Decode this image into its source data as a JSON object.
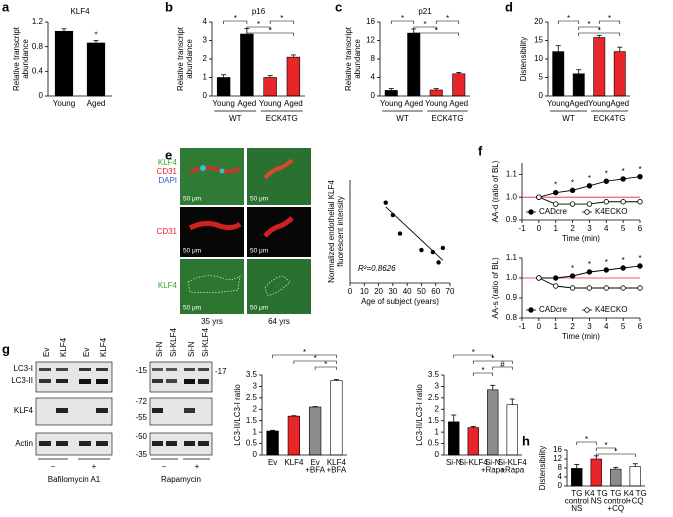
{
  "chart_data": [
    {
      "type": "bar",
      "label": "a",
      "title": "KLF4",
      "ylabel": [
        "Relative transcript",
        "abundance"
      ],
      "categories": [
        "Young",
        "Aged"
      ],
      "values": [
        1.05,
        0.86
      ],
      "errors": [
        0.04,
        0.04
      ],
      "colors": [
        "#000000",
        "#000000"
      ],
      "ylim": [
        0,
        1.2
      ],
      "yticks": [
        0,
        0.4,
        0.8,
        1.2
      ],
      "annotations": [
        "*"
      ]
    },
    {
      "type": "bar",
      "label": "b",
      "title": "p16",
      "ylabel": [
        "Relative transcript",
        "abundance"
      ],
      "categories": [
        "Young",
        "Aged",
        "Young",
        "Aged"
      ],
      "groups": [
        "WT",
        "ECK4TG"
      ],
      "values": [
        1.0,
        3.35,
        1.0,
        2.1
      ],
      "errors": [
        0.15,
        0.3,
        0.1,
        0.12
      ],
      "colors": [
        "#000000",
        "#000000",
        "#e8262a",
        "#e8262a"
      ],
      "ylim": [
        0,
        4
      ],
      "yticks": [
        0,
        1,
        2,
        3,
        4
      ],
      "annotations": [
        "*",
        "*",
        "*",
        "*"
      ]
    },
    {
      "type": "bar",
      "label": "c",
      "title": "p21",
      "ylabel": [
        "Relative transcript",
        "abundance"
      ],
      "categories": [
        "Young",
        "Aged",
        "Young",
        "Aged"
      ],
      "groups": [
        "WT",
        "ECK4TG"
      ],
      "values": [
        1.2,
        13.6,
        1.3,
        4.8
      ],
      "errors": [
        0.4,
        0.9,
        0.3,
        0.3
      ],
      "colors": [
        "#000000",
        "#000000",
        "#e8262a",
        "#e8262a"
      ],
      "ylim": [
        0,
        16
      ],
      "yticks": [
        0,
        4,
        8,
        12,
        16
      ],
      "annotations": [
        "*",
        "*",
        "*",
        "*"
      ]
    },
    {
      "type": "bar",
      "label": "d",
      "ylabel": "Distensibility",
      "categories": [
        "Young",
        "Aged",
        "Young",
        "Aged"
      ],
      "groups": [
        "WT",
        "ECK4TG"
      ],
      "values": [
        12,
        6,
        15.8,
        12
      ],
      "errors": [
        1.6,
        1.1,
        0.6,
        1.2
      ],
      "colors": [
        "#000000",
        "#000000",
        "#e8262a",
        "#e8262a"
      ],
      "ylim": [
        0,
        20
      ],
      "yticks": [
        0,
        5,
        10,
        15,
        20
      ],
      "annotations": [
        "*",
        "*",
        "*",
        "*"
      ]
    },
    {
      "type": "scatter",
      "xlabel": "Age of subject (years)",
      "ylabel": [
        "Normalized endothelial KLF4",
        "fluorescent intensity"
      ],
      "x": [
        25,
        30,
        35,
        50,
        58,
        62,
        65
      ],
      "y": [
        0.195,
        0.165,
        0.12,
        0.08,
        0.075,
        0.05,
        0.085
      ],
      "color": "#000000",
      "trend": {
        "x": [
          25,
          65
        ],
        "y": [
          0.185,
          0.055
        ]
      },
      "xlim": [
        0,
        70
      ],
      "xticks": [
        0,
        10,
        20,
        30,
        40,
        50,
        60,
        70
      ],
      "ylim": [
        0,
        0.25
      ],
      "annotations": [
        "R²=0.8626"
      ]
    },
    {
      "type": "line",
      "label": "f",
      "xlabel": "Time (min)",
      "ylabel": "AA-d (ratio of BL)",
      "x": [
        0,
        1,
        2,
        3,
        4,
        5,
        6
      ],
      "series": [
        {
          "name": "CADcre",
          "color": "#000000",
          "fill": "#000000",
          "values": [
            1.0,
            1.02,
            1.03,
            1.05,
            1.07,
            1.08,
            1.09
          ]
        },
        {
          "name": "K4ECKO",
          "color": "#000000",
          "fill": "#ffffff",
          "values": [
            1.0,
            0.97,
            0.97,
            0.97,
            0.98,
            0.98,
            0.98
          ]
        }
      ],
      "xlim": [
        -1,
        6
      ],
      "xticks": [
        -1,
        0,
        1,
        2,
        3,
        4,
        5,
        6
      ],
      "ylim": [
        0.9,
        1.15
      ],
      "yticks": [
        0.9,
        {
          "value": 1,
          "label": "1.0"
        },
        1.1
      ],
      "reference": 1,
      "reference_color": "#e8262a",
      "legend": "lower left",
      "annotations": [
        "*",
        "*",
        "*",
        "*",
        "*",
        "*"
      ]
    },
    {
      "type": "line",
      "xlabel": "Time (min)",
      "ylabel": "AA-s (ratio of BL)",
      "x": [
        0,
        1,
        2,
        3,
        4,
        5,
        6
      ],
      "series": [
        {
          "name": "CADcre",
          "color": "#000000",
          "fill": "#000000",
          "values": [
            1.0,
            1.0,
            1.01,
            1.03,
            1.04,
            1.05,
            1.06
          ]
        },
        {
          "name": "K4ECKO",
          "color": "#000000",
          "fill": "#ffffff",
          "values": [
            1.0,
            0.96,
            0.95,
            0.95,
            0.95,
            0.95,
            0.95
          ]
        }
      ],
      "xlim": [
        -1,
        6
      ],
      "xticks": [
        -1,
        0,
        1,
        2,
        3,
        4,
        5,
        6
      ],
      "ylim": [
        0.8,
        1.1
      ],
      "yticks": [
        0.8,
        0.9,
        {
          "value": 1,
          "label": "1.0"
        },
        1.1
      ],
      "reference": 1,
      "reference_color": "#e8262a",
      "legend": "lower left",
      "annotations": [
        "*",
        "*",
        "*",
        "*",
        "*"
      ]
    },
    {
      "type": "bar",
      "ylabel": "LC3-II/LC3-I ratio",
      "categories": [
        [
          "Ev"
        ],
        [
          "KLF4"
        ],
        [
          "Ev",
          "+BFA"
        ],
        [
          "KLF4",
          "+BFA"
        ]
      ],
      "values": [
        1.05,
        1.7,
        2.1,
        3.25
      ],
      "errors": [
        0.03,
        0.02,
        0.02,
        0.05
      ],
      "colors": [
        "#000000",
        "#e8262a",
        "#8c8c8c",
        "#ffffff"
      ],
      "ylim": [
        0,
        3.5
      ],
      "yticks": [
        0,
        0.5,
        1,
        1.5,
        2,
        2.5,
        3,
        3.5
      ],
      "annotations": [
        "*",
        "*",
        "*"
      ]
    },
    {
      "type": "bar",
      "ylabel": "LC3-II/LC3-I ratio",
      "categories": [
        [
          "Si-N"
        ],
        [
          "Si-KLF4"
        ],
        [
          "Si-N",
          "+Rapa"
        ],
        [
          "Si-KLF4",
          "+Rapa"
        ]
      ],
      "values": [
        1.45,
        1.2,
        2.85,
        2.2
      ],
      "errors": [
        0.3,
        0.05,
        0.2,
        0.25
      ],
      "colors": [
        "#000000",
        "#e8262a",
        "#8c8c8c",
        "#ffffff"
      ],
      "ylim": [
        0,
        3.5
      ],
      "yticks": [
        0,
        0.5,
        1,
        1.5,
        2,
        2.5,
        3,
        3.5
      ],
      "annotations": [
        "*",
        "*",
        "*",
        "#"
      ]
    },
    {
      "type": "bar",
      "label": "h",
      "ylabel": "Distensibility",
      "categories": [
        [
          "TG",
          "control",
          "NS"
        ],
        [
          "K4 TG",
          "NS"
        ],
        [
          "TG",
          "control",
          "+CQ"
        ],
        [
          "K4 TG",
          "+CQ"
        ]
      ],
      "values": [
        7.8,
        12,
        7.5,
        8.6
      ],
      "errors": [
        1.8,
        1.4,
        0.8,
        1.3
      ],
      "colors": [
        "#000000",
        "#e8262a",
        "#8c8c8c",
        "#ffffff"
      ],
      "ylim": [
        0,
        16
      ],
      "yticks": [
        0,
        4,
        8,
        12,
        16
      ],
      "annotations": [
        "*",
        "*",
        "*"
      ]
    }
  ],
  "micrographs": {
    "label": "e",
    "merged_channels": [
      "KLF4",
      "CD31",
      "DAPI"
    ],
    "row_labels": [
      "CD31",
      "KLF4"
    ],
    "scale_bar": "50 μm",
    "columns": [
      "35 yrs",
      "64 yrs"
    ]
  },
  "blots": {
    "label": "g",
    "left": {
      "lanes": [
        "Ev",
        "KLF4",
        "Ev",
        "KLF4"
      ],
      "rows": [
        "LC3-I",
        "LC3-II",
        "KLF4",
        "Actin"
      ],
      "treatment_signs": [
        "–",
        "+"
      ],
      "treatment": "Bafilomycin A1"
    },
    "right": {
      "lanes": [
        "Si-N",
        "Si-KLF4",
        "Si-N",
        "Si-KLF4"
      ],
      "markers_left": [
        "-15",
        "-72",
        "-55",
        "-50",
        "-35"
      ],
      "markers_right": [
        "-17"
      ],
      "treatment_signs": [
        "–",
        "+"
      ],
      "treatment": "Rapamycin"
    }
  }
}
